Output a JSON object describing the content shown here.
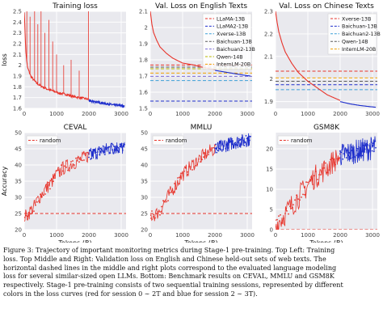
{
  "chart_data": [
    {
      "type": "line",
      "title": "Training loss",
      "ylabel": "loss",
      "xlabel": "",
      "ylim": [
        1.6,
        2.5
      ],
      "xlim": [
        0,
        3150
      ],
      "yticks": [
        1.6,
        1.7,
        1.8,
        1.9,
        2.0,
        2.1,
        2.2,
        2.3,
        2.4,
        2.5
      ],
      "xticks": [
        0,
        1000,
        2000,
        3000
      ],
      "grid": true,
      "series": [
        {
          "color": "#e8332a",
          "x": [
            0,
            50,
            100,
            200,
            300,
            400,
            500,
            700,
            900,
            1100,
            1300,
            1500,
            1700,
            1900,
            2000
          ],
          "y": [
            2.5,
            2.12,
            1.98,
            1.9,
            1.86,
            1.83,
            1.81,
            1.78,
            1.76,
            1.74,
            1.73,
            1.71,
            1.7,
            1.69,
            1.68
          ]
        },
        {
          "color": "#1f2fcc",
          "x": [
            2000,
            2200,
            2400,
            2600,
            2800,
            3000,
            3100
          ],
          "y": [
            1.67,
            1.66,
            1.65,
            1.64,
            1.63,
            1.625,
            1.62
          ]
        }
      ]
    },
    {
      "type": "line",
      "title": "Val. Loss on English Texts",
      "ylim": [
        1.5,
        2.1
      ],
      "xlim": [
        0,
        3150
      ],
      "yticks": [
        1.5,
        1.6,
        1.7,
        1.8,
        1.9,
        2.0,
        2.1
      ],
      "xticks": [
        0,
        1000,
        2000,
        3000
      ],
      "legend": "top-right",
      "grid": true,
      "series": [
        {
          "color": "#e8332a",
          "x": [
            0,
            50,
            100,
            200,
            300,
            500,
            700,
            1000,
            1300,
            1600,
            2000
          ],
          "y": [
            2.1,
            2.02,
            1.97,
            1.92,
            1.88,
            1.84,
            1.81,
            1.78,
            1.77,
            1.755,
            1.74
          ]
        },
        {
          "color": "#1f2fcc",
          "x": [
            2000,
            2300,
            2600,
            2900,
            3100
          ],
          "y": [
            1.735,
            1.725,
            1.715,
            1.705,
            1.7
          ]
        }
      ],
      "baselines": [
        {
          "name": "LLaMA-13B",
          "value": 1.768,
          "color": "#e8332a"
        },
        {
          "name": "LLaMA2-13B",
          "value": 1.545,
          "color": "#1f2fcc"
        },
        {
          "name": "Xverse-13B",
          "value": 1.672,
          "color": "#3c9fd8"
        },
        {
          "name": "Baichuan-13B",
          "value": 1.755,
          "color": "#5a5a5a"
        },
        {
          "name": "Baichuan2-13B",
          "value": 1.698,
          "color": "#7a6ad8"
        },
        {
          "name": "Qwen-14B",
          "value": 1.745,
          "color": "#b8b800"
        },
        {
          "name": "InternLM-20B",
          "value": 1.718,
          "color": "#f0a000"
        }
      ]
    },
    {
      "type": "line",
      "title": "Val. Loss on Chinese Texts",
      "ylim": [
        1.87,
        2.3
      ],
      "xlim": [
        0,
        3150
      ],
      "yticks": [
        1.9,
        2.0,
        2.1,
        2.2,
        2.3
      ],
      "xticks": [
        0,
        1000,
        2000,
        3000
      ],
      "legend": "top-right",
      "grid": true,
      "series": [
        {
          "color": "#e8332a",
          "x": [
            0,
            50,
            100,
            200,
            300,
            500,
            700,
            1000,
            1300,
            1600,
            2000
          ],
          "y": [
            2.3,
            2.25,
            2.21,
            2.16,
            2.12,
            2.07,
            2.03,
            1.99,
            1.96,
            1.93,
            1.905
          ]
        },
        {
          "color": "#1f2fcc",
          "x": [
            2000,
            2300,
            2600,
            2900,
            3100
          ],
          "y": [
            1.9,
            1.89,
            1.883,
            1.878,
            1.875
          ]
        }
      ],
      "baselines": [
        {
          "name": "Xverse-13B",
          "value": 2.035,
          "color": "#e8332a"
        },
        {
          "name": "Baichuan-13B",
          "value": 1.975,
          "color": "#1f2fcc"
        },
        {
          "name": "Baichuan2-13B",
          "value": 1.953,
          "color": "#3c9fd8"
        },
        {
          "name": "Qwen-14B",
          "value": 1.99,
          "color": "#5a5a5a"
        },
        {
          "name": "InternLM-20B",
          "value": 2.005,
          "color": "#f0a000"
        }
      ]
    },
    {
      "type": "line",
      "title": "CEVAL",
      "ylabel": "Accuracy",
      "xlabel": "Tokens (B)",
      "ylim": [
        20,
        50
      ],
      "xlim": [
        0,
        3150
      ],
      "yticks": [
        20,
        25,
        30,
        35,
        40,
        45,
        50
      ],
      "xticks": [
        0,
        1000,
        2000,
        3000
      ],
      "legend": "top-left",
      "grid": true,
      "random_baseline": {
        "name": "random",
        "value": 25,
        "color": "#e8332a"
      },
      "series": [
        {
          "color": "#e8332a",
          "x": [
            0,
            100,
            200,
            300,
            400,
            600,
            800,
            1000,
            1200,
            1400,
            1600,
            1800,
            2000
          ],
          "y": [
            24,
            24.5,
            26,
            27,
            29,
            32,
            34,
            37,
            39,
            40,
            41,
            42,
            43
          ]
        },
        {
          "color": "#1f2fcc",
          "x": [
            2000,
            2300,
            2600,
            2900,
            3100
          ],
          "y": [
            43,
            44,
            45,
            45.5,
            45
          ]
        }
      ]
    },
    {
      "type": "line",
      "title": "MMLU",
      "xlabel": "Tokens (B)",
      "ylim": [
        20,
        50
      ],
      "xlim": [
        0,
        3150
      ],
      "yticks": [
        20,
        25,
        30,
        35,
        40,
        45,
        50
      ],
      "xticks": [
        0,
        1000,
        2000,
        3000
      ],
      "legend": "top-left",
      "grid": true,
      "random_baseline": {
        "name": "random",
        "value": 25,
        "color": "#e8332a"
      },
      "series": [
        {
          "color": "#e8332a",
          "x": [
            0,
            100,
            200,
            300,
            400,
            600,
            800,
            1000,
            1200,
            1400,
            1600,
            1800,
            2000
          ],
          "y": [
            24,
            24.5,
            25,
            26,
            28,
            31,
            34,
            37,
            39,
            41,
            42.5,
            44,
            45
          ]
        },
        {
          "color": "#1f2fcc",
          "x": [
            2000,
            2300,
            2600,
            2900,
            3100
          ],
          "y": [
            45,
            46,
            47,
            47.5,
            48
          ]
        }
      ]
    },
    {
      "type": "line",
      "title": "GSM8K",
      "xlabel": "Tokens (B)",
      "ylim": [
        0,
        24
      ],
      "xlim": [
        0,
        3150
      ],
      "yticks": [
        0,
        5,
        10,
        15,
        20
      ],
      "xticks": [
        0,
        1000,
        2000,
        3000
      ],
      "legend": "top-left",
      "grid": true,
      "random_baseline": {
        "name": "random",
        "value": 0,
        "color": "#e8332a"
      },
      "series": [
        {
          "color": "#e8332a",
          "x": [
            0,
            200,
            400,
            600,
            800,
            1000,
            1200,
            1400,
            1600,
            1800,
            2000
          ],
          "y": [
            1,
            3,
            5,
            7,
            9,
            11,
            13,
            14,
            15.5,
            17,
            18
          ]
        },
        {
          "color": "#1f2fcc",
          "x": [
            2000,
            2300,
            2600,
            2900,
            3100
          ],
          "y": [
            18.5,
            19,
            19.5,
            20,
            20.5
          ]
        }
      ]
    }
  ],
  "caption": {
    "lines": [
      "Figure 3: Trajectory of important monitoring metrics during Stage-1 pre-training. Top Left: Training",
      "loss. Top Middle and Right: Validation loss on English and Chinese held-out sets of web texts. The",
      "horizontal dashed lines in the middle and right plots correspond to the evaluated language modeling",
      "loss for several similar-sized open LLMs. Bottom: Benchmark results on CEVAL, MMLU and GSM8K",
      "respectively. Stage-1 pre-training consists of two sequential training sessions, represented by different",
      "colors in the loss curves (red for session 0 ∼ 2T and blue for session 2 ∼ 3T)."
    ]
  }
}
